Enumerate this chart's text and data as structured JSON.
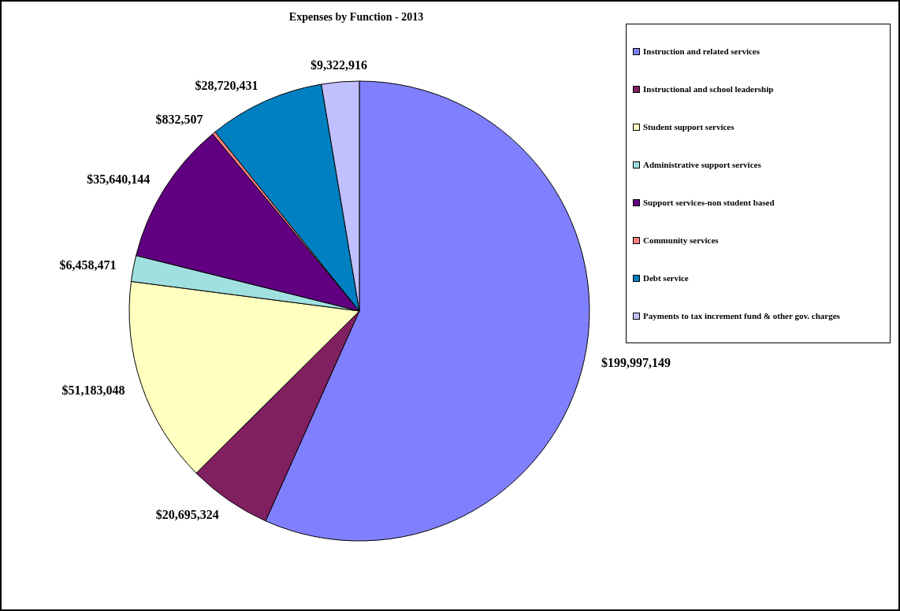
{
  "chart_data": {
    "type": "pie",
    "title": "Expenses by Function - 2013",
    "categories": [
      "Instruction and related services",
      "Instructional and school leadership",
      "Student support services",
      "Administrative support services",
      "Support services-non student based",
      "Community services",
      "Debt service",
      "Payments to tax increment fund & other gov. charges"
    ],
    "values": [
      199997149,
      20695324,
      51183048,
      6458471,
      35640144,
      832507,
      28720431,
      9322916
    ],
    "value_labels": [
      "$199,997,149",
      "$20,695,324",
      "$51,183,048",
      "$6,458,471",
      "$35,640,144",
      "$832,507",
      "$28,720,431",
      "$9,322,916"
    ],
    "colors": [
      "#8080ff",
      "#802060",
      "#ffffc0",
      "#a0e0e0",
      "#600080",
      "#ff8080",
      "#0080c0",
      "#c0c0ff"
    ],
    "legend": "top right"
  }
}
